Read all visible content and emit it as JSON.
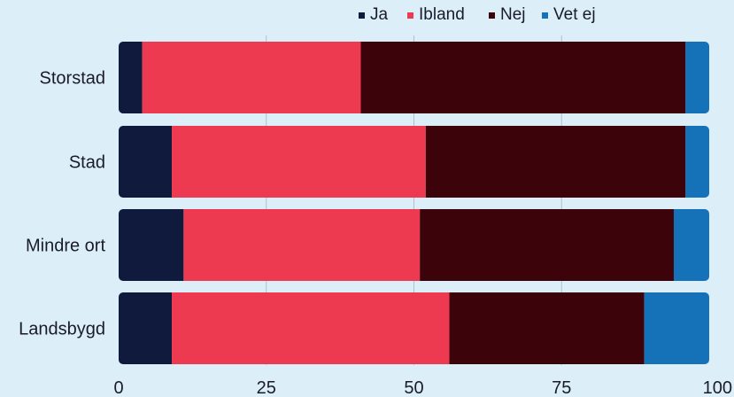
{
  "chart_data": {
    "type": "bar",
    "orientation": "horizontal",
    "stacked": true,
    "categories": [
      "Storstad",
      "Stad",
      "Mindre ort",
      "Landsbygd"
    ],
    "series": [
      {
        "name": "Ja",
        "color": "#0f1a3d",
        "values": [
          4,
          9,
          11,
          9
        ]
      },
      {
        "name": "Ibland",
        "color": "#ee3a50",
        "values": [
          37,
          43,
          40,
          47
        ]
      },
      {
        "name": "Nej",
        "color": "#3d030b",
        "values": [
          55,
          44,
          43,
          33
        ]
      },
      {
        "name": "Vet ej",
        "color": "#1672b8",
        "values": [
          4,
          4,
          6,
          11
        ]
      }
    ],
    "xlim": [
      0,
      100
    ],
    "xticks": [
      0,
      25,
      50,
      75,
      100
    ],
    "grid": true,
    "legend_position": "top"
  }
}
